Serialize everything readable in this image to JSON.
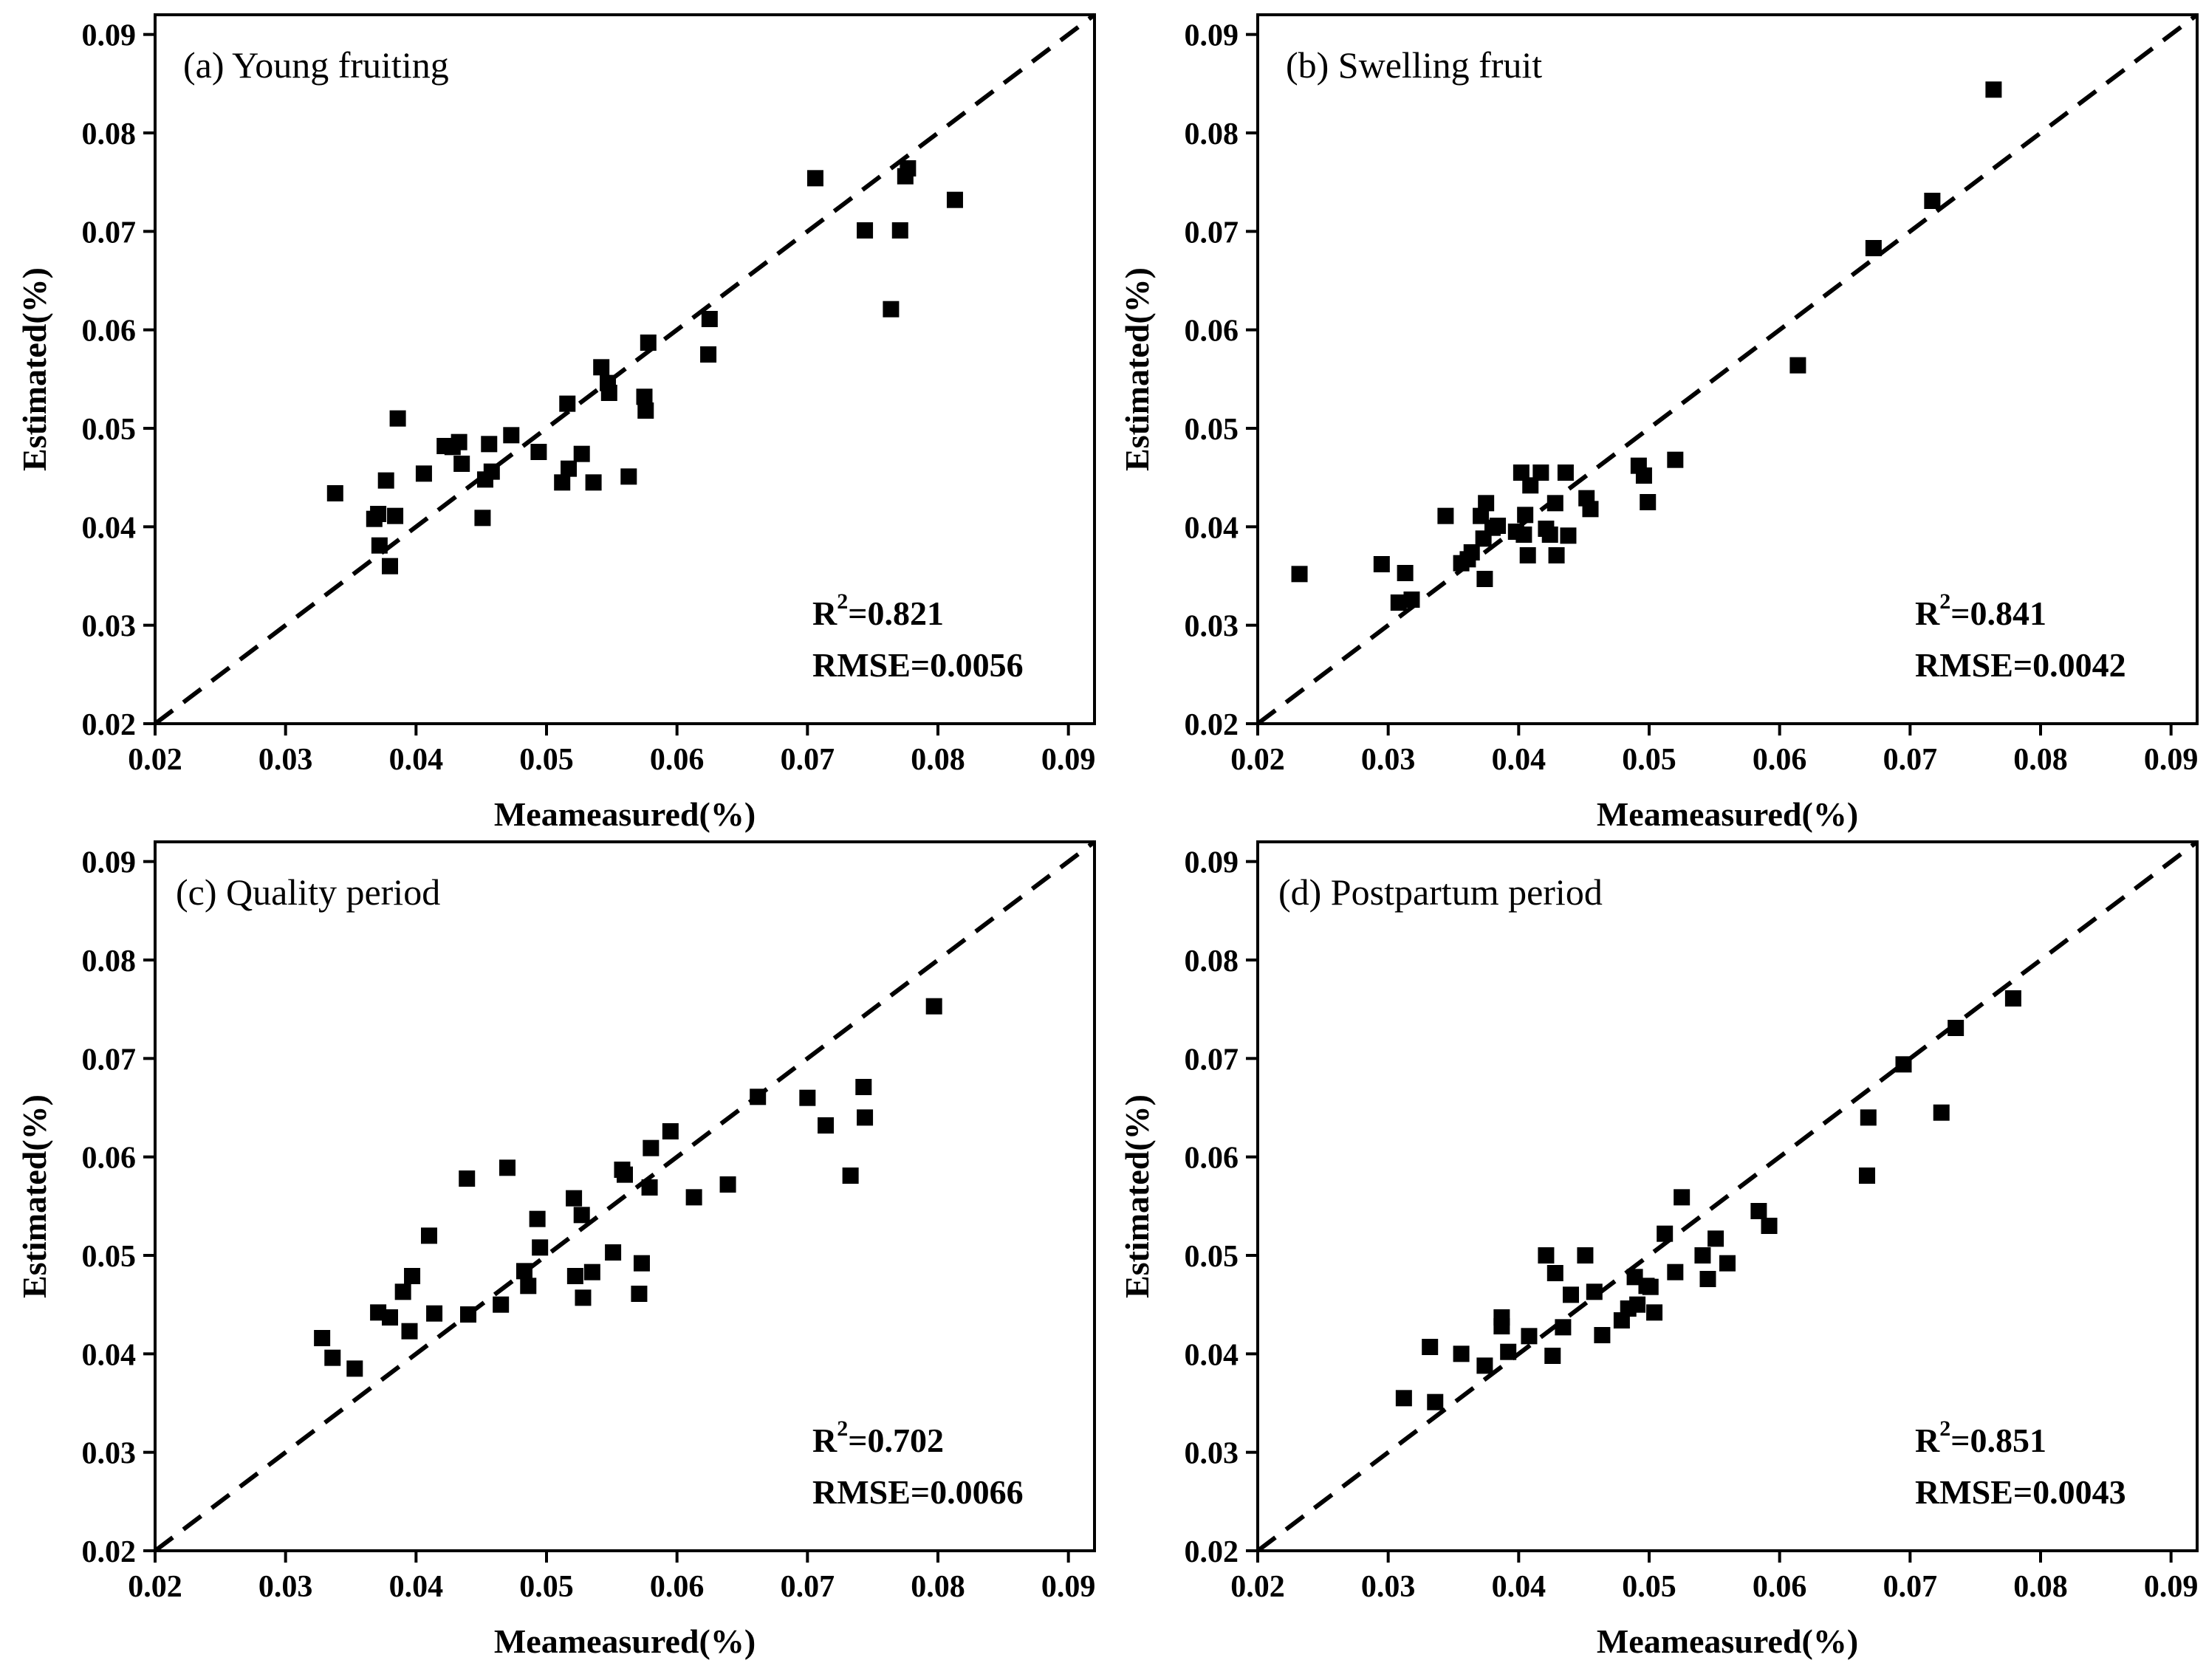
{
  "chart_data": [
    {
      "type": "scatter",
      "panel": "a",
      "title": "(a) Young fruiting",
      "xlabel": "Meameasured(%)",
      "ylabel": "Estimated(%)",
      "xlim": [
        0.02,
        0.092
      ],
      "ylim": [
        0.02,
        0.092
      ],
      "xticks": [
        "0.02",
        "0.03",
        "0.04",
        "0.05",
        "0.06",
        "0.07",
        "0.08",
        "0.09"
      ],
      "yticks": [
        "0.02",
        "0.03",
        "0.04",
        "0.05",
        "0.06",
        "0.07",
        "0.08",
        "0.09"
      ],
      "reference_line": "1:1 dashed",
      "r2_label": "R",
      "r2_sup": "2",
      "r2_value": "=0.821",
      "rmse": "RMSE=0.0056",
      "x": [
        0.0338,
        0.0368,
        0.0371,
        0.0372,
        0.0377,
        0.038,
        0.0384,
        0.0386,
        0.0406,
        0.0422,
        0.0428,
        0.0433,
        0.0435,
        0.0451,
        0.0453,
        0.0456,
        0.0458,
        0.0473,
        0.0494,
        0.0512,
        0.0516,
        0.0517,
        0.0527,
        0.0536,
        0.0542,
        0.0547,
        0.0548,
        0.0563,
        0.0575,
        0.0576,
        0.0578,
        0.0624,
        0.0625,
        0.0706,
        0.0744,
        0.0764,
        0.0771,
        0.0775,
        0.0777,
        0.0813
      ],
      "y": [
        0.0434,
        0.0408,
        0.0413,
        0.0381,
        0.0447,
        0.036,
        0.0411,
        0.051,
        0.0454,
        0.0482,
        0.0481,
        0.0486,
        0.0464,
        0.0409,
        0.0448,
        0.0484,
        0.0456,
        0.0493,
        0.0476,
        0.0445,
        0.0525,
        0.0459,
        0.0474,
        0.0445,
        0.0562,
        0.0546,
        0.0536,
        0.0451,
        0.0532,
        0.0518,
        0.0587,
        0.0575,
        0.0611,
        0.0754,
        0.0701,
        0.0621,
        0.0701,
        0.0756,
        0.0764,
        0.0732
      ]
    },
    {
      "type": "scatter",
      "panel": "b",
      "title": "(b) Swelling fruit",
      "xlabel": "Meameasured(%)",
      "ylabel": "Estimated(%)",
      "xlim": [
        0.02,
        0.092
      ],
      "ylim": [
        0.02,
        0.092
      ],
      "xticks": [
        "0.02",
        "0.03",
        "0.04",
        "0.05",
        "0.06",
        "0.07",
        "0.08",
        "0.09"
      ],
      "yticks": [
        "0.02",
        "0.03",
        "0.04",
        "0.05",
        "0.06",
        "0.07",
        "0.08",
        "0.09"
      ],
      "reference_line": "1:1 dashed",
      "r2_label": "R",
      "r2_sup": "2",
      "r2_value": "=0.841",
      "rmse": "RMSE=0.0042",
      "x": [
        0.0232,
        0.0295,
        0.0308,
        0.0313,
        0.0318,
        0.0344,
        0.0356,
        0.0361,
        0.0364,
        0.0371,
        0.0373,
        0.0374,
        0.0375,
        0.038,
        0.0384,
        0.0398,
        0.0402,
        0.0404,
        0.0405,
        0.0407,
        0.0409,
        0.0417,
        0.0421,
        0.0424,
        0.0428,
        0.0429,
        0.0436,
        0.0438,
        0.0452,
        0.0455,
        0.0492,
        0.0496,
        0.0499,
        0.052,
        0.0614,
        0.0672,
        0.0717,
        0.0764
      ],
      "y": [
        0.0352,
        0.0362,
        0.0323,
        0.0353,
        0.0326,
        0.0411,
        0.0363,
        0.0367,
        0.0374,
        0.0411,
        0.0388,
        0.0347,
        0.0424,
        0.0399,
        0.0401,
        0.0395,
        0.0455,
        0.0392,
        0.0412,
        0.0371,
        0.0442,
        0.0455,
        0.0398,
        0.0392,
        0.0424,
        0.0371,
        0.0455,
        0.0391,
        0.0429,
        0.0418,
        0.0462,
        0.0452,
        0.0425,
        0.0468,
        0.0564,
        0.0683,
        0.0731,
        0.0844
      ]
    },
    {
      "type": "scatter",
      "panel": "c",
      "title": "(c) Quality period",
      "xlabel": "Meameasured(%)",
      "ylabel": "Estimated(%)",
      "xlim": [
        0.02,
        0.092
      ],
      "ylim": [
        0.02,
        0.092
      ],
      "xticks": [
        "0.02",
        "0.03",
        "0.04",
        "0.05",
        "0.06",
        "0.07",
        "0.08",
        "0.09"
      ],
      "yticks": [
        "0.02",
        "0.03",
        "0.04",
        "0.05",
        "0.06",
        "0.07",
        "0.08",
        "0.09"
      ],
      "reference_line": "1:1 dashed",
      "r2_label": "R",
      "r2_sup": "2",
      "r2_value": "=0.702",
      "rmse": "RMSE=0.0066",
      "x": [
        0.0328,
        0.0336,
        0.0353,
        0.0371,
        0.038,
        0.039,
        0.0395,
        0.0397,
        0.041,
        0.0414,
        0.0439,
        0.044,
        0.0465,
        0.047,
        0.0483,
        0.0486,
        0.0493,
        0.0495,
        0.0521,
        0.0522,
        0.0527,
        0.0528,
        0.0535,
        0.0551,
        0.0558,
        0.056,
        0.0571,
        0.0573,
        0.0579,
        0.058,
        0.0595,
        0.0613,
        0.0639,
        0.0662,
        0.07,
        0.0714,
        0.0733,
        0.0743,
        0.0744,
        0.0797
      ],
      "y": [
        0.0416,
        0.0396,
        0.0385,
        0.0442,
        0.0437,
        0.0463,
        0.0423,
        0.0479,
        0.052,
        0.0441,
        0.0578,
        0.044,
        0.045,
        0.0589,
        0.0484,
        0.0469,
        0.0537,
        0.0508,
        0.0558,
        0.0479,
        0.0541,
        0.0457,
        0.0483,
        0.0503,
        0.0587,
        0.0582,
        0.0461,
        0.0492,
        0.0569,
        0.0609,
        0.0626,
        0.0559,
        0.0572,
        0.0661,
        0.066,
        0.0632,
        0.0581,
        0.0671,
        0.064,
        0.0753
      ]
    },
    {
      "type": "scatter",
      "panel": "d",
      "title": "(d) Postpartum period",
      "xlabel": "Meameasured(%)",
      "ylabel": "Estimated(%)",
      "xlim": [
        0.02,
        0.092
      ],
      "ylim": [
        0.02,
        0.092
      ],
      "xticks": [
        "0.02",
        "0.03",
        "0.04",
        "0.05",
        "0.06",
        "0.07",
        "0.08",
        "0.09"
      ],
      "yticks": [
        "0.02",
        "0.03",
        "0.04",
        "0.05",
        "0.06",
        "0.07",
        "0.08",
        "0.09"
      ],
      "reference_line": "1:1 dashed",
      "r2_label": "R",
      "r2_sup": "2",
      "r2_value": "=0.851",
      "rmse": "RMSE=0.0043",
      "x": [
        0.0312,
        0.0332,
        0.0336,
        0.0356,
        0.0374,
        0.0387,
        0.0387,
        0.0392,
        0.0408,
        0.0421,
        0.0426,
        0.0428,
        0.0434,
        0.044,
        0.0458,
        0.0451,
        0.0464,
        0.0479,
        0.0484,
        0.0489,
        0.0491,
        0.0498,
        0.0501,
        0.0504,
        0.0512,
        0.052,
        0.0525,
        0.0541,
        0.0545,
        0.0551,
        0.056,
        0.0584,
        0.0592,
        0.0667,
        0.0668,
        0.0695,
        0.0724,
        0.0735,
        0.0779
      ],
      "y": [
        0.0355,
        0.0407,
        0.0351,
        0.04,
        0.0388,
        0.0437,
        0.0428,
        0.0402,
        0.0418,
        0.05,
        0.0398,
        0.0482,
        0.0427,
        0.046,
        0.0463,
        0.05,
        0.0419,
        0.0434,
        0.0446,
        0.0478,
        0.045,
        0.0469,
        0.0468,
        0.0442,
        0.0522,
        0.0483,
        0.0559,
        0.05,
        0.0476,
        0.0517,
        0.0492,
        0.0545,
        0.053,
        0.0581,
        0.064,
        0.0694,
        0.0645,
        0.0731,
        0.0761
      ]
    }
  ]
}
